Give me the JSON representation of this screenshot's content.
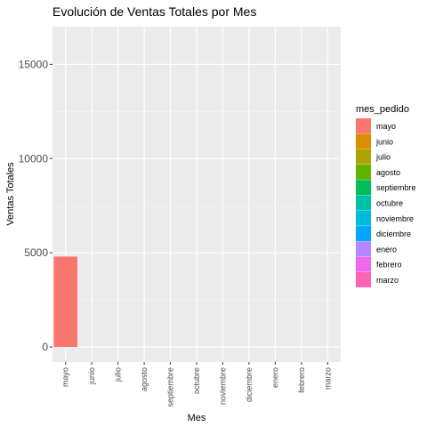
{
  "chart_data": {
    "type": "bar",
    "title": "Evolución de Ventas Totales por Mes",
    "xlabel": "Mes",
    "ylabel": "Ventas Totales",
    "categories": [
      "mayo",
      "junio",
      "julio",
      "agosto",
      "septiembre",
      "octubre",
      "noviembre",
      "diciembre",
      "enero",
      "febrero",
      "marzo"
    ],
    "values": [
      4800,
      0,
      0,
      0,
      0,
      0,
      0,
      0,
      0,
      0,
      0
    ],
    "colors": [
      "#F8766D",
      "#DB8E00",
      "#AEA200",
      "#64B200",
      "#00BD5C",
      "#00C1A7",
      "#00BADE",
      "#00A6FF",
      "#B385FF",
      "#EF67EB",
      "#FF63B6"
    ],
    "ylim": [
      -800,
      17000
    ],
    "yticks": [
      0,
      5000,
      10000,
      15000
    ],
    "ytick_labels": [
      "0",
      "5000",
      "10000",
      "15000"
    ],
    "grid": true,
    "panel_background": "#EBEBEB",
    "legend": {
      "title": "mes_pedido",
      "position": "right"
    }
  }
}
